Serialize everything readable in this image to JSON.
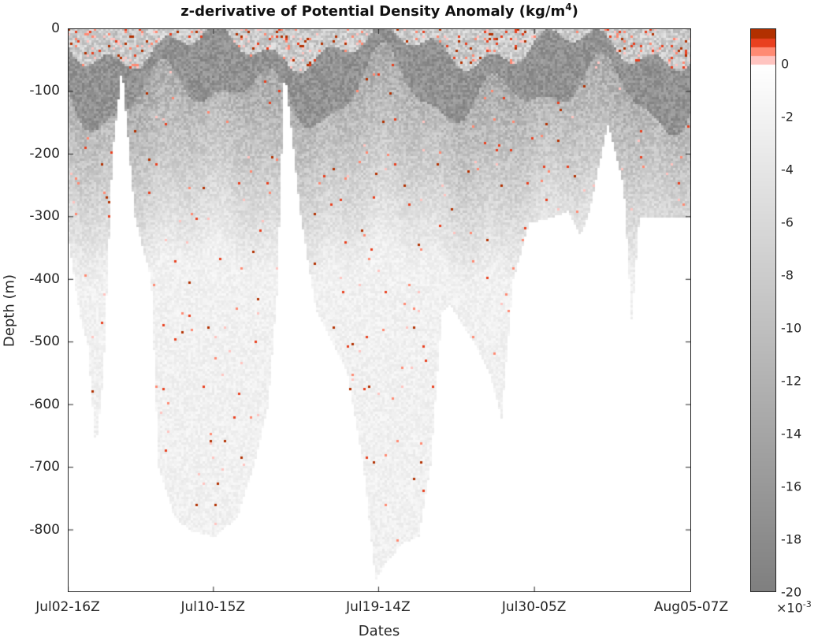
{
  "chart_data": {
    "type": "heatmap",
    "title": "z-derivative of Potential Density Anomaly",
    "title_units": "(kg/m",
    "title_units_exp": "4",
    "title_units_close": ")",
    "xlabel": "Dates",
    "ylabel": "Depth  (m)",
    "xlim": [
      0,
      100
    ],
    "ylim": [
      -900,
      0
    ],
    "x_ticks": [
      {
        "x": 0,
        "label": "Jul02-16Z"
      },
      {
        "x": 23.3,
        "label": "Jul10-15Z"
      },
      {
        "x": 49.8,
        "label": "Jul19-14Z"
      },
      {
        "x": 74.8,
        "label": "Jul30-05Z"
      },
      {
        "x": 100,
        "label": "Aug05-07Z"
      }
    ],
    "y_ticks": [
      0,
      -100,
      -200,
      -300,
      -400,
      -500,
      -600,
      -700,
      -800
    ],
    "colorbar": {
      "range": [
        -20,
        1.33
      ],
      "ticks": [
        0,
        -2,
        -4,
        -6,
        -8,
        -10,
        -12,
        -14,
        -16,
        -18,
        -20
      ],
      "multiplier": "×10",
      "multiplier_exp": "-3",
      "neg_colors": [
        "#ffffff",
        "#7f7f7f"
      ],
      "pos_colors": [
        "#ffc4c0",
        "#ff8a73",
        "#e9401f",
        "#b23000"
      ]
    },
    "max_depth_envelope": [
      [
        0,
        -340
      ],
      [
        1.8,
        -460
      ],
      [
        3,
        -500
      ],
      [
        4.3,
        -670
      ],
      [
        5.5,
        -560
      ],
      [
        7,
        -200
      ],
      [
        8.5,
        -60
      ],
      [
        10.6,
        -300
      ],
      [
        13.2,
        -400
      ],
      [
        14.4,
        -700
      ],
      [
        17,
        -780
      ],
      [
        19.5,
        -800
      ],
      [
        23.3,
        -810
      ],
      [
        27,
        -780
      ],
      [
        29.6,
        -700
      ],
      [
        32,
        -600
      ],
      [
        33.4,
        -420
      ],
      [
        34.6,
        -60
      ],
      [
        37.2,
        -300
      ],
      [
        39.7,
        -450
      ],
      [
        42.2,
        -500
      ],
      [
        44.7,
        -550
      ],
      [
        47.3,
        -700
      ],
      [
        49.2,
        -880
      ],
      [
        51,
        -850
      ],
      [
        53.6,
        -820
      ],
      [
        56.1,
        -810
      ],
      [
        58,
        -700
      ],
      [
        59.9,
        -450
      ],
      [
        61.1,
        -440
      ],
      [
        63.7,
        -480
      ],
      [
        65,
        -500
      ],
      [
        67.5,
        -550
      ],
      [
        69.4,
        -620
      ],
      [
        71.3,
        -400
      ],
      [
        73.8,
        -310
      ],
      [
        77.6,
        -300
      ],
      [
        80.1,
        -290
      ],
      [
        82,
        -330
      ],
      [
        83.3,
        -300
      ],
      [
        86.5,
        -150
      ],
      [
        89,
        -250
      ],
      [
        90.3,
        -470
      ],
      [
        91.5,
        -300
      ],
      [
        100,
        -300
      ]
    ]
  }
}
